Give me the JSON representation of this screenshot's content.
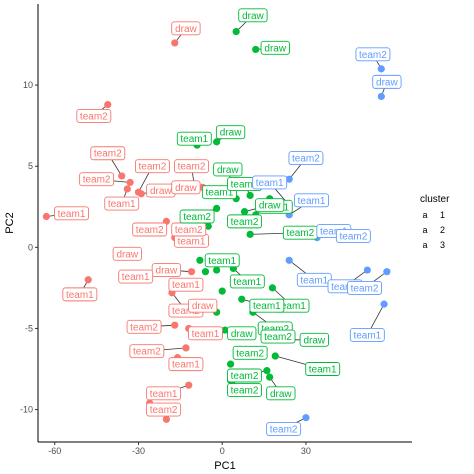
{
  "chart_data": {
    "type": "scatter",
    "xlabel": "PC1",
    "ylabel": "PC2",
    "xlim": [
      -66,
      68
    ],
    "ylim": [
      -12,
      15
    ],
    "xticks": [
      -60,
      -30,
      0,
      30
    ],
    "yticks": [
      -10,
      -5,
      0,
      5,
      10
    ],
    "grid": false,
    "legend": {
      "title": "cluster",
      "placement": "right",
      "entries": [
        {
          "key": "a",
          "label": "1",
          "color": "#F8766D"
        },
        {
          "key": "a",
          "label": "2",
          "color": "#00BA38"
        },
        {
          "key": "a",
          "label": "3",
          "color": "#619CFF"
        }
      ]
    },
    "series": [
      {
        "cluster": "1",
        "color": "#F8766D",
        "points": [
          {
            "x": -17,
            "y": 12.6,
            "label": "draw",
            "lx": -13,
            "ly": 13.5
          },
          {
            "x": -41,
            "y": 8.8,
            "label": "team2",
            "lx": -46,
            "ly": 8.1
          },
          {
            "x": -63,
            "y": 1.9,
            "label": "team1",
            "lx": -54,
            "ly": 2.1
          },
          {
            "x": -36,
            "y": 4.4,
            "label": "team2",
            "lx": -41,
            "ly": 5.8
          },
          {
            "x": -33,
            "y": 4.0,
            "label": "team2",
            "lx": -45,
            "ly": 4.2
          },
          {
            "x": -30,
            "y": 3.4,
            "label": "team2",
            "lx": -25,
            "ly": 5.0
          },
          {
            "x": -34,
            "y": 3.6,
            "label": "team1",
            "lx": -36,
            "ly": 2.7
          },
          {
            "x": -29,
            "y": 3.3,
            "label": "draw",
            "lx": -22,
            "ly": 3.5
          },
          {
            "x": -10,
            "y": 3.8,
            "label": "team2",
            "lx": -11,
            "ly": 5.0
          },
          {
            "x": -7,
            "y": 3.7,
            "label": "draw",
            "lx": -13,
            "ly": 3.7
          },
          {
            "x": -20,
            "y": 1.6,
            "label": "team2",
            "lx": -26,
            "ly": 1.1
          },
          {
            "x": -17,
            "y": 0.6,
            "label": "team1",
            "lx": -11,
            "ly": 0.4
          },
          {
            "x": -9,
            "y": 1.0,
            "label": "team2",
            "lx": -12,
            "ly": 1.1
          },
          {
            "x": -31,
            "y": -0.3,
            "label": "draw",
            "lx": -34,
            "ly": -0.4
          },
          {
            "x": -11,
            "y": -1.5,
            "label": "draw",
            "lx": -20,
            "ly": -1.4
          },
          {
            "x": -30,
            "y": -1.6,
            "label": "team1",
            "lx": -31,
            "ly": -1.8
          },
          {
            "x": -15,
            "y": -2.5,
            "label": "team1",
            "lx": -13,
            "ly": -2.3
          },
          {
            "x": -48,
            "y": -2.0,
            "label": "team1",
            "lx": -51,
            "ly": -2.9
          },
          {
            "x": -18,
            "y": -2.8,
            "label": "team2",
            "lx": -13,
            "ly": -3.9
          },
          {
            "x": -10,
            "y": -3.7,
            "label": "draw",
            "lx": -7,
            "ly": -3.6
          },
          {
            "x": -17,
            "y": -4.8,
            "label": "team2",
            "lx": -28,
            "ly": -4.9
          },
          {
            "x": -12,
            "y": -5.0,
            "label": "team1",
            "lx": -6,
            "ly": -5.3
          },
          {
            "x": -13,
            "y": -6.2,
            "label": "team2",
            "lx": -27,
            "ly": -6.4
          },
          {
            "x": -16,
            "y": -6.8,
            "label": "team1",
            "lx": -13,
            "ly": -7.2
          },
          {
            "x": -12,
            "y": -8.5,
            "label": "team1",
            "lx": -21,
            "ly": -9.0
          },
          {
            "x": -26,
            "y": -9.6,
            "label": "team2",
            "lx": -21,
            "ly": -10.0
          },
          {
            "x": -20,
            "y": -10.6,
            "label": "",
            "lx": 0,
            "ly": 0
          }
        ]
      },
      {
        "cluster": "2",
        "color": "#00BA38",
        "points": [
          {
            "x": 5,
            "y": 13.3,
            "label": "draw",
            "lx": 11,
            "ly": 14.3
          },
          {
            "x": 12,
            "y": 12.2,
            "label": "draw",
            "lx": 19,
            "ly": 12.3
          },
          {
            "x": -2,
            "y": 6.5,
            "label": "draw",
            "lx": 3,
            "ly": 7.1
          },
          {
            "x": -9,
            "y": 6.3,
            "label": "team1",
            "lx": -10,
            "ly": 6.7
          },
          {
            "x": 5,
            "y": 4.0,
            "label": "team1",
            "lx": -1,
            "ly": 3.4
          },
          {
            "x": 5,
            "y": 3.0,
            "label": "draw",
            "lx": 2,
            "ly": 4.8
          },
          {
            "x": 10,
            "y": 3.2,
            "label": "team1",
            "lx": 8,
            "ly": 3.9
          },
          {
            "x": 17,
            "y": 3.0,
            "label": "team1",
            "lx": 19,
            "ly": 2.5
          },
          {
            "x": 8,
            "y": 2.2,
            "label": "draw",
            "lx": 17,
            "ly": 2.6
          },
          {
            "x": -2,
            "y": 2.4,
            "label": "team2",
            "lx": -9,
            "ly": 1.9
          },
          {
            "x": 12,
            "y": 2.0,
            "label": "team2",
            "lx": 8,
            "ly": 1.6
          },
          {
            "x": -5,
            "y": 1.3,
            "label": "",
            "lx": 0,
            "ly": 0
          },
          {
            "x": 10,
            "y": 0.8,
            "label": "team2",
            "lx": 28,
            "ly": 0.9
          },
          {
            "x": -8,
            "y": -0.8,
            "label": "",
            "lx": 0,
            "ly": 0
          },
          {
            "x": -2,
            "y": -1.4,
            "label": "team1",
            "lx": 0,
            "ly": -0.8
          },
          {
            "x": 4,
            "y": -1.3,
            "label": "team1",
            "lx": 9,
            "ly": -2.1
          },
          {
            "x": -6,
            "y": -1.5,
            "label": "",
            "lx": 0,
            "ly": 0
          },
          {
            "x": 0,
            "y": -2.7,
            "label": "",
            "lx": 0,
            "ly": 0
          },
          {
            "x": 18,
            "y": -2.5,
            "label": "team1",
            "lx": 25,
            "ly": -3.6
          },
          {
            "x": 7,
            "y": -3.2,
            "label": "team1",
            "lx": 16,
            "ly": -3.6
          },
          {
            "x": 11,
            "y": -4.0,
            "label": "team2",
            "lx": 19,
            "ly": -5.0
          },
          {
            "x": -2,
            "y": -4.0,
            "label": "",
            "lx": 0,
            "ly": 0
          },
          {
            "x": 1,
            "y": -5.1,
            "label": "draw",
            "lx": 7,
            "ly": -5.3
          },
          {
            "x": 14,
            "y": -4.8,
            "label": "team2",
            "lx": 20,
            "ly": -5.5
          },
          {
            "x": 18,
            "y": -5.7,
            "label": "draw",
            "lx": 33,
            "ly": -5.7
          },
          {
            "x": 15,
            "y": -6.3,
            "label": "team2",
            "lx": 10,
            "ly": -6.5
          },
          {
            "x": 19,
            "y": -6.7,
            "label": "team1",
            "lx": 36,
            "ly": -7.5
          },
          {
            "x": 3,
            "y": -7.2,
            "label": "",
            "lx": 0,
            "ly": 0
          },
          {
            "x": 16,
            "y": -7.6,
            "label": "team2",
            "lx": 8,
            "ly": -7.9
          },
          {
            "x": 3,
            "y": -8.2,
            "label": "team2",
            "lx": 8,
            "ly": -8.8
          },
          {
            "x": 17,
            "y": -8.0,
            "label": "draw",
            "lx": 21,
            "ly": -9.0
          }
        ]
      },
      {
        "cluster": "3",
        "color": "#619CFF",
        "points": [
          {
            "x": 57,
            "y": 11.0,
            "label": "team2",
            "lx": 54,
            "ly": 11.9
          },
          {
            "x": 57,
            "y": 9.3,
            "label": "draw",
            "lx": 59,
            "ly": 10.2
          },
          {
            "x": 24,
            "y": 4.2,
            "label": "team2",
            "lx": 30,
            "ly": 5.5
          },
          {
            "x": 24,
            "y": 2.6,
            "label": "team1",
            "lx": 17,
            "ly": 4.0
          },
          {
            "x": 24,
            "y": 2.0,
            "label": "team1",
            "lx": 32,
            "ly": 2.9
          },
          {
            "x": 34,
            "y": 0.6,
            "label": "team1",
            "lx": 40,
            "ly": 1.0
          },
          {
            "x": 42,
            "y": 0.6,
            "label": "team2",
            "lx": 47,
            "ly": 0.7
          },
          {
            "x": 24,
            "y": -0.8,
            "label": "team1",
            "lx": 33,
            "ly": -2.0
          },
          {
            "x": 52,
            "y": -1.4,
            "label": "team1",
            "lx": 44,
            "ly": -2.4
          },
          {
            "x": 59,
            "y": -1.5,
            "label": "team2",
            "lx": 51,
            "ly": -2.5
          },
          {
            "x": 58,
            "y": -3.5,
            "label": "team1",
            "lx": 52,
            "ly": -5.4
          },
          {
            "x": 30,
            "y": -10.5,
            "label": "team2",
            "lx": 22,
            "ly": -11.2
          }
        ]
      }
    ]
  }
}
